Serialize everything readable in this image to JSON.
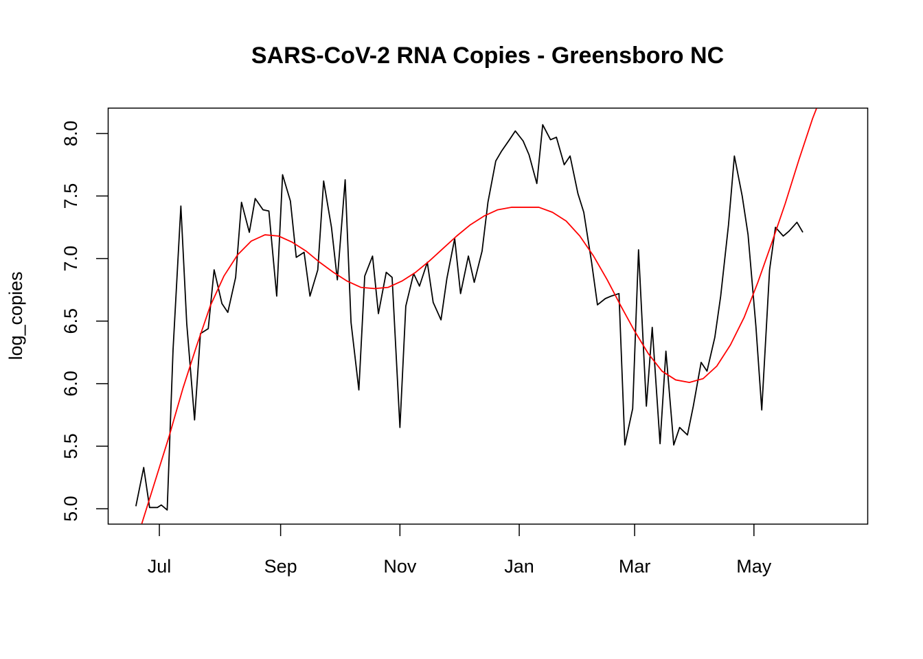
{
  "chart_data": {
    "type": "line",
    "title": "SARS-CoV-2 RNA Copies - Greensboro NC",
    "xlabel": "",
    "ylabel": "log_copies",
    "x_tick_labels": [
      "Jul",
      "Sep",
      "Nov",
      "Jan",
      "Mar",
      "May"
    ],
    "x_tick_dates": [
      "2020-07-01",
      "2020-09-01",
      "2020-11-01",
      "2021-01-01",
      "2021-03-01",
      "2021-05-01"
    ],
    "xlim": [
      "2020-06-05",
      "2021-06-28"
    ],
    "y_ticks": [
      5.0,
      5.5,
      6.0,
      6.5,
      7.0,
      7.5,
      8.0
    ],
    "y_tick_labels": [
      "5.0",
      "5.5",
      "6.0",
      "6.5",
      "7.0",
      "7.5",
      "8.0"
    ],
    "ylim": [
      4.88,
      8.2
    ],
    "grid": false,
    "colors": {
      "observed": "#000000",
      "fit": "#ff0000"
    },
    "series": [
      {
        "values": [
          [
            "2020-06-19",
            5.02
          ],
          [
            "2020-06-23",
            5.33
          ],
          [
            "2020-06-26",
            5.01
          ],
          [
            "2020-06-30",
            5.01
          ],
          [
            "2020-07-02",
            5.03
          ],
          [
            "2020-07-05",
            4.99
          ],
          [
            "2020-07-08",
            6.27
          ],
          [
            "2020-07-12",
            7.42
          ],
          [
            "2020-07-15",
            6.48
          ],
          [
            "2020-07-19",
            5.71
          ],
          [
            "2020-07-22",
            6.4
          ],
          [
            "2020-07-26",
            6.44
          ],
          [
            "2020-07-29",
            6.91
          ],
          [
            "2020-08-02",
            6.64
          ],
          [
            "2020-08-05",
            6.57
          ],
          [
            "2020-08-09",
            6.85
          ],
          [
            "2020-08-12",
            7.45
          ],
          [
            "2020-08-16",
            7.21
          ],
          [
            "2020-08-19",
            7.48
          ],
          [
            "2020-08-23",
            7.39
          ],
          [
            "2020-08-26",
            7.38
          ],
          [
            "2020-08-30",
            6.7
          ],
          [
            "2020-09-02",
            7.67
          ],
          [
            "2020-09-06",
            7.46
          ],
          [
            "2020-09-09",
            7.01
          ],
          [
            "2020-09-13",
            7.05
          ],
          [
            "2020-09-16",
            6.7
          ],
          [
            "2020-09-20",
            6.91
          ],
          [
            "2020-09-23",
            7.62
          ],
          [
            "2020-09-27",
            7.25
          ],
          [
            "2020-09-30",
            6.83
          ],
          [
            "2020-10-04",
            7.63
          ],
          [
            "2020-10-07",
            6.49
          ],
          [
            "2020-10-11",
            5.95
          ],
          [
            "2020-10-14",
            6.86
          ],
          [
            "2020-10-18",
            7.02
          ],
          [
            "2020-10-21",
            6.56
          ],
          [
            "2020-10-25",
            6.89
          ],
          [
            "2020-10-28",
            6.85
          ],
          [
            "2020-11-01",
            5.65
          ],
          [
            "2020-11-04",
            6.62
          ],
          [
            "2020-11-08",
            6.88
          ],
          [
            "2020-11-11",
            6.78
          ],
          [
            "2020-11-15",
            6.97
          ],
          [
            "2020-11-18",
            6.65
          ],
          [
            "2020-11-22",
            6.51
          ],
          [
            "2020-11-25",
            6.84
          ],
          [
            "2020-11-29",
            7.16
          ],
          [
            "2020-12-02",
            6.72
          ],
          [
            "2020-12-06",
            7.02
          ],
          [
            "2020-12-09",
            6.81
          ],
          [
            "2020-12-13",
            7.06
          ],
          [
            "2020-12-16",
            7.45
          ],
          [
            "2020-12-20",
            7.78
          ],
          [
            "2020-12-23",
            7.86
          ],
          [
            "2020-12-27",
            7.95
          ],
          [
            "2020-12-30",
            8.02
          ],
          [
            "2021-01-03",
            7.94
          ],
          [
            "2021-01-06",
            7.83
          ],
          [
            "2021-01-10",
            7.6
          ],
          [
            "2021-01-13",
            8.07
          ],
          [
            "2021-01-17",
            7.95
          ],
          [
            "2021-01-20",
            7.97
          ],
          [
            "2021-01-24",
            7.75
          ],
          [
            "2021-01-27",
            7.82
          ],
          [
            "2021-01-31",
            7.52
          ],
          [
            "2021-02-03",
            7.37
          ],
          [
            "2021-02-07",
            6.97
          ],
          [
            "2021-02-10",
            6.63
          ],
          [
            "2021-02-14",
            6.68
          ],
          [
            "2021-02-17",
            6.7
          ],
          [
            "2021-02-21",
            6.72
          ],
          [
            "2021-02-24",
            5.51
          ],
          [
            "2021-02-28",
            5.8
          ],
          [
            "2021-03-03",
            7.07
          ],
          [
            "2021-03-07",
            5.82
          ],
          [
            "2021-03-10",
            6.45
          ],
          [
            "2021-03-14",
            5.52
          ],
          [
            "2021-03-17",
            6.26
          ],
          [
            "2021-03-21",
            5.51
          ],
          [
            "2021-03-24",
            5.65
          ],
          [
            "2021-03-28",
            5.59
          ],
          [
            "2021-03-31",
            5.82
          ],
          [
            "2021-04-04",
            6.17
          ],
          [
            "2021-04-07",
            6.1
          ],
          [
            "2021-04-11",
            6.37
          ],
          [
            "2021-04-14",
            6.7
          ],
          [
            "2021-04-18",
            7.27
          ],
          [
            "2021-04-21",
            7.82
          ],
          [
            "2021-04-25",
            7.5
          ],
          [
            "2021-04-28",
            7.19
          ],
          [
            "2021-05-02",
            6.46
          ],
          [
            "2021-05-05",
            5.79
          ],
          [
            "2021-05-09",
            6.91
          ],
          [
            "2021-05-12",
            7.25
          ],
          [
            "2021-05-16",
            7.18
          ],
          [
            "2021-05-19",
            7.22
          ],
          [
            "2021-05-23",
            7.29
          ],
          [
            "2021-05-26",
            7.21
          ]
        ]
      },
      {
        "values": [
          [
            "2020-06-22",
            4.88
          ],
          [
            "2020-06-29",
            5.23
          ],
          [
            "2020-07-06",
            5.58
          ],
          [
            "2020-07-13",
            5.96
          ],
          [
            "2020-07-20",
            6.3
          ],
          [
            "2020-07-27",
            6.62
          ],
          [
            "2020-08-03",
            6.86
          ],
          [
            "2020-08-10",
            7.03
          ],
          [
            "2020-08-17",
            7.14
          ],
          [
            "2020-08-24",
            7.19
          ],
          [
            "2020-08-31",
            7.18
          ],
          [
            "2020-09-07",
            7.13
          ],
          [
            "2020-09-14",
            7.06
          ],
          [
            "2020-09-21",
            6.97
          ],
          [
            "2020-09-28",
            6.89
          ],
          [
            "2020-10-05",
            6.82
          ],
          [
            "2020-10-12",
            6.77
          ],
          [
            "2020-10-19",
            6.76
          ],
          [
            "2020-10-26",
            6.77
          ],
          [
            "2020-11-02",
            6.82
          ],
          [
            "2020-11-09",
            6.89
          ],
          [
            "2020-11-16",
            6.98
          ],
          [
            "2020-11-23",
            7.08
          ],
          [
            "2020-11-30",
            7.18
          ],
          [
            "2020-12-07",
            7.27
          ],
          [
            "2020-12-14",
            7.34
          ],
          [
            "2020-12-21",
            7.39
          ],
          [
            "2020-12-28",
            7.41
          ],
          [
            "2021-01-04",
            7.41
          ],
          [
            "2021-01-11",
            7.41
          ],
          [
            "2021-01-18",
            7.37
          ],
          [
            "2021-01-25",
            7.3
          ],
          [
            "2021-02-01",
            7.18
          ],
          [
            "2021-02-08",
            7.02
          ],
          [
            "2021-02-15",
            6.83
          ],
          [
            "2021-02-22",
            6.62
          ],
          [
            "2021-03-01",
            6.42
          ],
          [
            "2021-03-08",
            6.24
          ],
          [
            "2021-03-15",
            6.1
          ],
          [
            "2021-03-22",
            6.03
          ],
          [
            "2021-03-29",
            6.01
          ],
          [
            "2021-04-05",
            6.04
          ],
          [
            "2021-04-12",
            6.14
          ],
          [
            "2021-04-19",
            6.31
          ],
          [
            "2021-04-26",
            6.53
          ],
          [
            "2021-05-03",
            6.81
          ],
          [
            "2021-05-10",
            7.12
          ],
          [
            "2021-05-17",
            7.44
          ],
          [
            "2021-05-24",
            7.79
          ],
          [
            "2021-05-31",
            8.12
          ],
          [
            "2021-06-02",
            8.2
          ]
        ]
      }
    ]
  }
}
